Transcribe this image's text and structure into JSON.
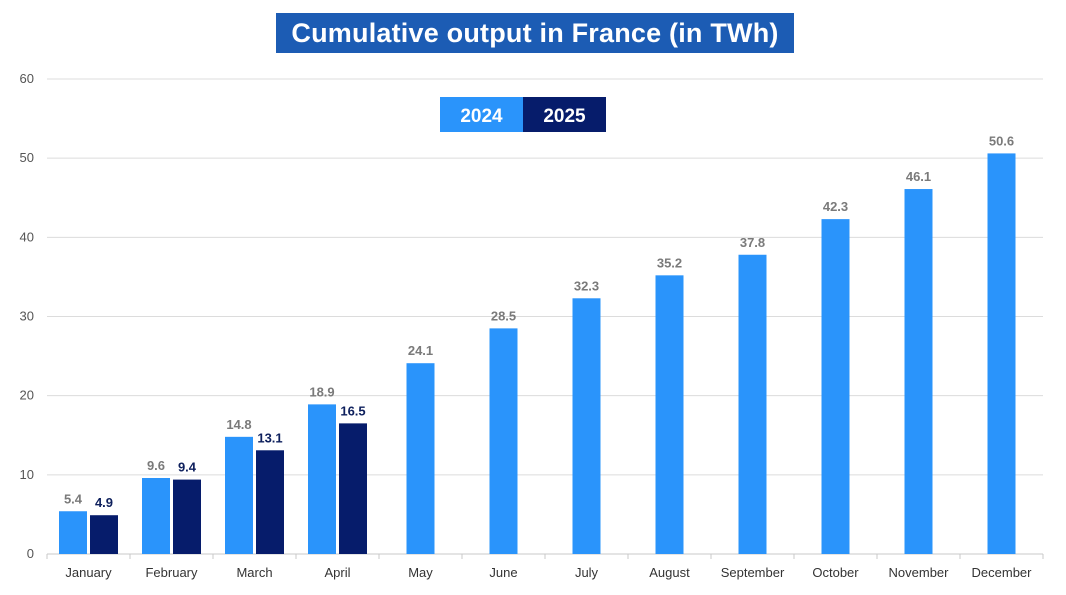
{
  "chart_data": {
    "type": "bar",
    "title": "Cumulative output in France (in TWh)",
    "categories": [
      "January",
      "February",
      "March",
      "April",
      "May",
      "June",
      "July",
      "August",
      "September",
      "October",
      "November",
      "December"
    ],
    "series": [
      {
        "name": "2024",
        "color": "#2a94fb",
        "label_color": "#7a7a7a",
        "values": [
          5.4,
          9.6,
          14.8,
          18.9,
          24.1,
          28.5,
          32.3,
          35.2,
          37.8,
          42.3,
          46.1,
          50.6
        ]
      },
      {
        "name": "2025",
        "color": "#061c6b",
        "label_color": "#0d1f5c",
        "values": [
          4.9,
          9.4,
          13.1,
          16.5,
          null,
          null,
          null,
          null,
          null,
          null,
          null,
          null
        ]
      }
    ],
    "yticks": [
      "0",
      "10",
      "20",
      "30",
      "40",
      "50",
      "60"
    ],
    "ylim": [
      0,
      60
    ],
    "grid": true,
    "legend_position": "top-center"
  }
}
